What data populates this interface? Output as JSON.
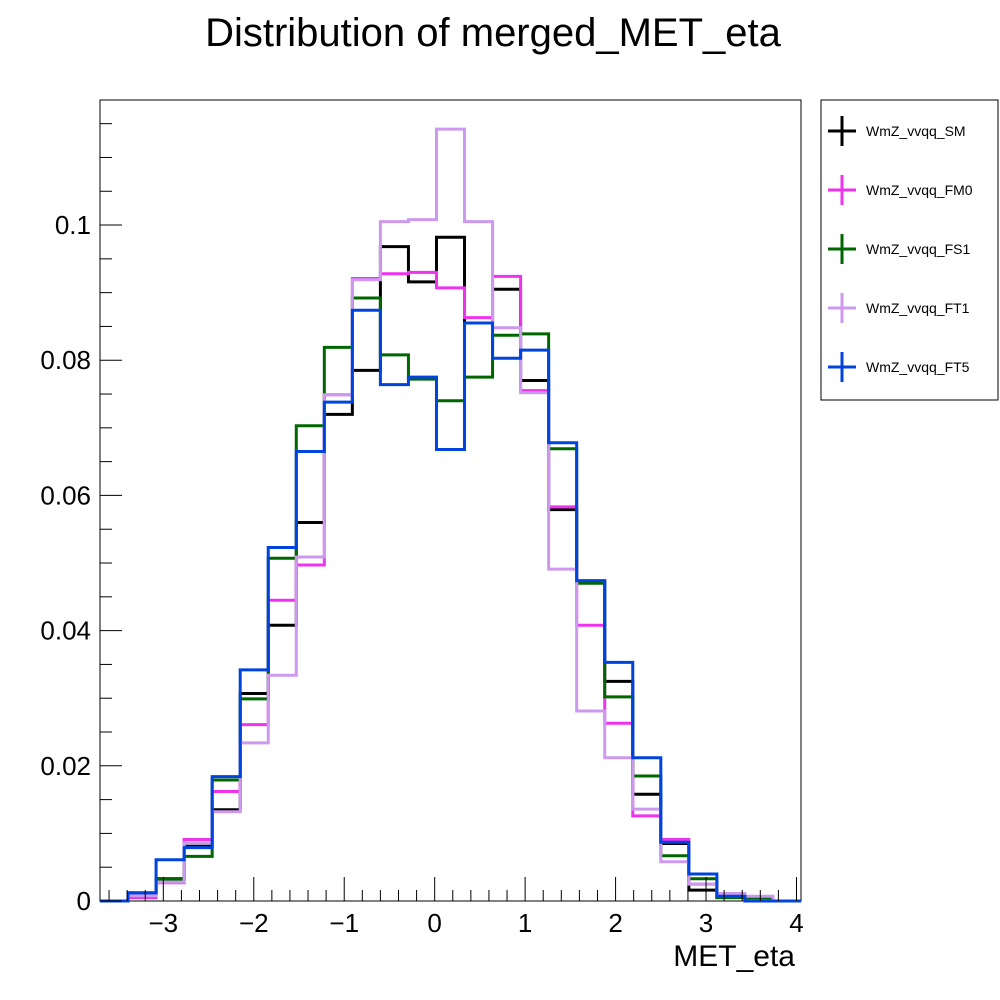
{
  "chart_data": {
    "type": "step-histogram",
    "title": "Distribution of merged_MET_eta",
    "xlabel": "MET_eta",
    "ylabel": "",
    "xlim": [
      -3.7,
      4.05
    ],
    "ylim": [
      0,
      0.1185
    ],
    "x_ticks": [
      -3,
      -2,
      -1,
      0,
      1,
      2,
      3,
      4
    ],
    "x_tick_labels": [
      "−3",
      "−2",
      "−1",
      "0",
      "1",
      "2",
      "3",
      "4"
    ],
    "y_ticks": [
      0,
      0.02,
      0.04,
      0.06,
      0.08,
      0.1
    ],
    "y_tick_labels": [
      "0",
      "0.02",
      "0.04",
      "0.06",
      "0.08",
      "0.1"
    ],
    "grid": false,
    "legend_position": "right-outside-top",
    "bin_edges": [
      -3.7,
      -3.39,
      -3.08,
      -2.77,
      -2.46,
      -2.15,
      -1.84,
      -1.53,
      -1.22,
      -0.91,
      -0.6,
      -0.29,
      0.02,
      0.33,
      0.64,
      0.95,
      1.26,
      1.57,
      1.88,
      2.19,
      2.5,
      2.81,
      3.12,
      3.43,
      3.74,
      4.05
    ],
    "series": [
      {
        "name": "WmZ_vvqq_SM",
        "color": "#000000",
        "values": [
          0,
          0.0012,
          0.0033,
          0.0081,
          0.0135,
          0.0307,
          0.0408,
          0.056,
          0.072,
          0.0785,
          0.0968,
          0.0916,
          0.0982,
          0.0855,
          0.0905,
          0.077,
          0.0579,
          0.0473,
          0.0325,
          0.0158,
          0.0085,
          0.0016,
          0.0007,
          0.0003,
          0
        ]
      },
      {
        "name": "WmZ_vvqq_FM0",
        "color": "#ee33ee",
        "values": [
          0,
          0.0005,
          0.0027,
          0.0091,
          0.0162,
          0.0261,
          0.0445,
          0.0497,
          0.0749,
          0.0921,
          0.0928,
          0.093,
          0.0907,
          0.0863,
          0.0924,
          0.0755,
          0.0583,
          0.0408,
          0.0263,
          0.0126,
          0.0091,
          0.0025,
          0.0005,
          0.0003,
          0
        ]
      },
      {
        "name": "WmZ_vvqq_FS1",
        "color": "#006600",
        "values": [
          0,
          0.0012,
          0.0032,
          0.0066,
          0.0179,
          0.0299,
          0.0507,
          0.0703,
          0.0819,
          0.0892,
          0.0808,
          0.0772,
          0.074,
          0.0775,
          0.0837,
          0.0839,
          0.0669,
          0.047,
          0.0302,
          0.0185,
          0.0067,
          0.0033,
          0.0005,
          0.0005,
          0
        ]
      },
      {
        "name": "WmZ_vvqq_FT1",
        "color": "#cc99ee",
        "values": [
          0,
          0.0008,
          0.0028,
          0.0086,
          0.0132,
          0.0234,
          0.0334,
          0.0509,
          0.0749,
          0.0919,
          0.1005,
          0.1008,
          0.1142,
          0.1005,
          0.0848,
          0.0752,
          0.0491,
          0.0281,
          0.0212,
          0.0136,
          0.0058,
          0.0025,
          0.0011,
          0.0007,
          0
        ]
      },
      {
        "name": "WmZ_vvqq_FT5",
        "color": "#0044dd",
        "values": [
          0,
          0.0012,
          0.0061,
          0.0079,
          0.0184,
          0.0342,
          0.0523,
          0.0665,
          0.0738,
          0.0874,
          0.0764,
          0.0775,
          0.0668,
          0.0855,
          0.0803,
          0.0815,
          0.0678,
          0.0474,
          0.0353,
          0.0212,
          0.0087,
          0.004,
          0.0007,
          0,
          0
        ]
      }
    ]
  }
}
